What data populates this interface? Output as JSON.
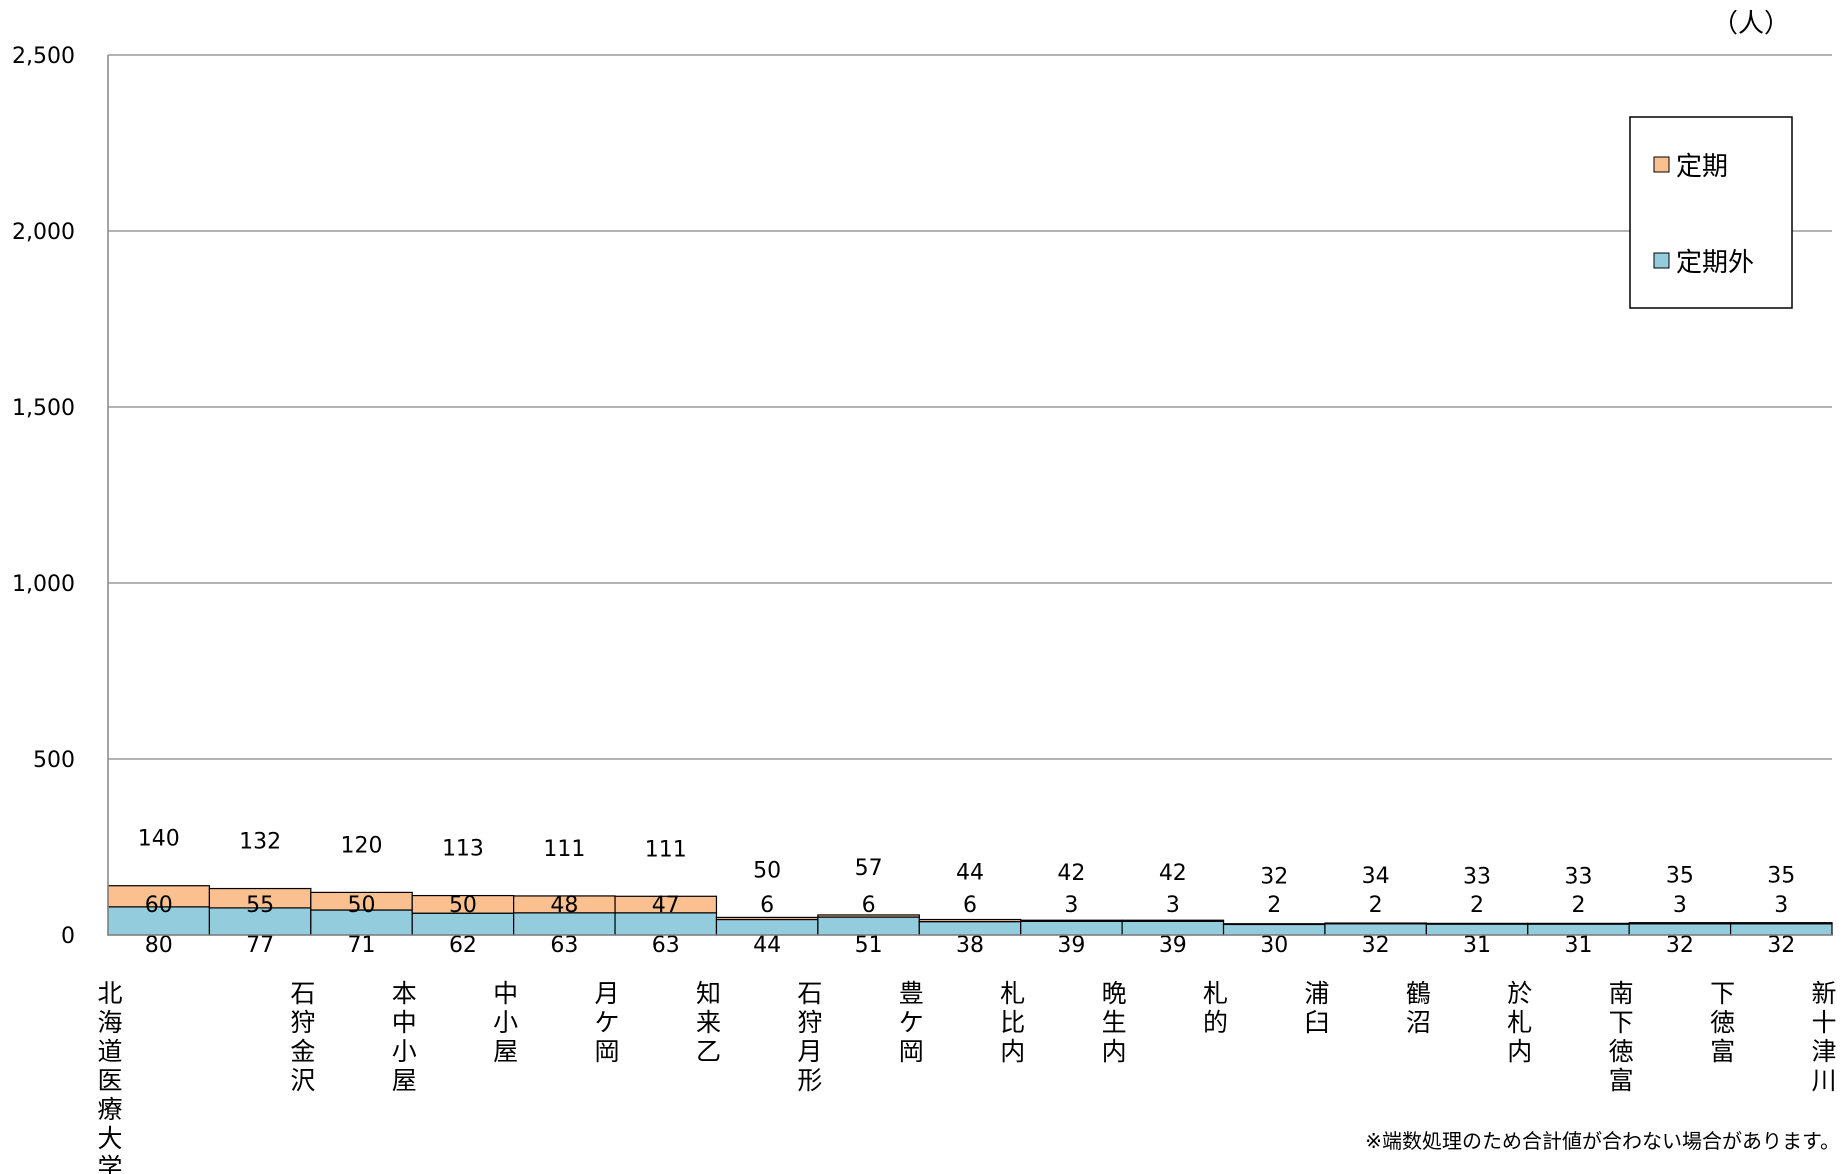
{
  "chart_data": {
    "type": "bar",
    "stacked": true,
    "unit_label": "（人）",
    "categories": [
      "北海道医療大学",
      "石狩金沢",
      "本中小屋",
      "中小屋",
      "月ケ岡",
      "知来乙",
      "石狩月形",
      "豊ケ岡",
      "札比内",
      "晩生内",
      "札的",
      "浦臼",
      "鶴沼",
      "於札内",
      "南下徳富",
      "下徳富",
      "新十津川"
    ],
    "series": [
      {
        "name": "定期外",
        "color": "#93CDDD",
        "values": [
          80,
          77,
          71,
          62,
          63,
          63,
          44,
          51,
          38,
          39,
          39,
          30,
          32,
          31,
          31,
          32,
          32
        ]
      },
      {
        "name": "定期",
        "color": "#FAC090",
        "values": [
          60,
          55,
          50,
          50,
          48,
          47,
          6,
          6,
          6,
          3,
          3,
          2,
          2,
          2,
          2,
          3,
          3
        ]
      }
    ],
    "totals": [
      140,
      132,
      120,
      113,
      111,
      111,
      50,
      57,
      44,
      42,
      42,
      32,
      34,
      33,
      33,
      35,
      35
    ],
    "yticks": [
      "0",
      "500",
      "1,000",
      "1,500",
      "2,000",
      "2,500"
    ],
    "ylim": [
      0,
      2500
    ],
    "grid": true,
    "legend": {
      "position": "top-right",
      "items": [
        "定期",
        "定期外"
      ]
    },
    "note": "※端数処理のため合計値が合わない場合があります。"
  }
}
